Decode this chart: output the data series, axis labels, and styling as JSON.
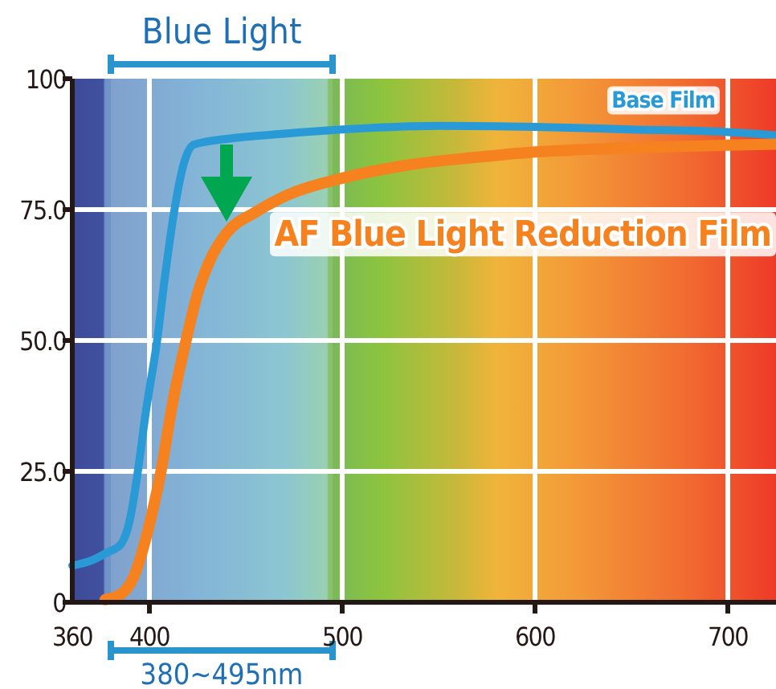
{
  "chart_data": {
    "type": "line",
    "xlim": [
      360,
      725
    ],
    "ylim": [
      0,
      100
    ],
    "xticks": [
      360,
      400,
      500,
      600,
      700
    ],
    "yticks": [
      0,
      {
        "value": 25,
        "label": "25.0"
      },
      {
        "value": 50,
        "label": "50.0"
      },
      {
        "value": 75,
        "label": "75.0"
      },
      100
    ],
    "grid": true,
    "legend": false,
    "marker": "none",
    "line_style": "solid",
    "bands": [
      {
        "axis": "x",
        "from": 380,
        "to": 495,
        "label": "Blue Light"
      }
    ],
    "annotations": [
      "380~495nm"
    ],
    "series": [
      {
        "name": "Base Film",
        "color": "#2a9ad6",
        "x": [
          360,
          370,
          378,
          385,
          390,
          394,
          398,
          404,
          408,
          413,
          418,
          423,
          440,
          470,
          500,
          550,
          600,
          650,
          700,
          725
        ],
        "values": [
          7,
          8,
          9.5,
          11,
          16,
          25,
          36,
          50,
          62,
          75,
          84,
          87.4,
          88.5,
          89.5,
          90.3,
          91,
          90.8,
          90.3,
          89.8,
          89.2
        ]
      },
      {
        "name": "AF Blue Light Reduction Film",
        "color": "#f5821f",
        "x": [
          377,
          385,
          392,
          398,
          402,
          406,
          412,
          419,
          425,
          431,
          440,
          455,
          470,
          500,
          532,
          570,
          600,
          650,
          700,
          725
        ],
        "values": [
          0.5,
          1.5,
          5,
          12,
          18,
          25,
          38,
          50,
          59,
          65,
          70.5,
          74.5,
          77.5,
          81,
          83.4,
          85,
          86,
          86.8,
          87.3,
          87.5
        ]
      }
    ]
  }
}
